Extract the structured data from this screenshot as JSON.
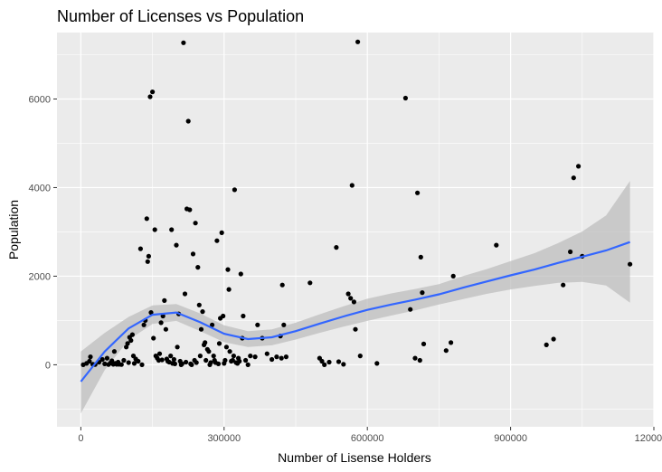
{
  "chart_data": {
    "type": "scatter",
    "title": "Number of Licenses vs Population",
    "xlabel": "Number of Lisense Holders",
    "ylabel": "Population",
    "xlim": [
      -50000,
      1200000
    ],
    "ylim": [
      -1400,
      7500
    ],
    "x_ticks": [
      0,
      300000,
      600000,
      900000,
      1200000
    ],
    "x_tick_labels": [
      "0",
      "300000",
      "600000",
      "900000",
      "1200000"
    ],
    "y_ticks": [
      0,
      2000,
      4000,
      6000
    ],
    "y_tick_labels": [
      "0",
      "2000",
      "4000",
      "6000"
    ],
    "grid": true,
    "legend": "none",
    "colors": {
      "panel": "#ebebeb",
      "grid": "#ffffff",
      "point": "#000000",
      "smooth_line": "#3366ff",
      "ribbon": "#bebebe"
    },
    "points": [
      [
        5000,
        0
      ],
      [
        12000,
        30
      ],
      [
        18000,
        80
      ],
      [
        20000,
        180
      ],
      [
        25000,
        10
      ],
      [
        30000,
        5
      ],
      [
        38000,
        60
      ],
      [
        45000,
        120
      ],
      [
        50000,
        20
      ],
      [
        55000,
        150
      ],
      [
        58000,
        5
      ],
      [
        62000,
        40
      ],
      [
        65000,
        90
      ],
      [
        68000,
        10
      ],
      [
        70000,
        300
      ],
      [
        72000,
        30
      ],
      [
        75000,
        10
      ],
      [
        78000,
        60
      ],
      [
        80000,
        10
      ],
      [
        85000,
        5
      ],
      [
        90000,
        100
      ],
      [
        95000,
        400
      ],
      [
        98000,
        480
      ],
      [
        100000,
        50
      ],
      [
        102000,
        620
      ],
      [
        105000,
        550
      ],
      [
        108000,
        680
      ],
      [
        110000,
        200
      ],
      [
        112000,
        30
      ],
      [
        115000,
        130
      ],
      [
        120000,
        80
      ],
      [
        125000,
        2620
      ],
      [
        128000,
        0
      ],
      [
        132000,
        900
      ],
      [
        135000,
        1000
      ],
      [
        138000,
        3300
      ],
      [
        140000,
        2330
      ],
      [
        142000,
        2450
      ],
      [
        145000,
        6050
      ],
      [
        147000,
        1180
      ],
      [
        150000,
        6160
      ],
      [
        152000,
        600
      ],
      [
        155000,
        3050
      ],
      [
        157000,
        200
      ],
      [
        160000,
        150
      ],
      [
        163000,
        100
      ],
      [
        165000,
        250
      ],
      [
        168000,
        950
      ],
      [
        170000,
        110
      ],
      [
        172000,
        1100
      ],
      [
        175000,
        1450
      ],
      [
        178000,
        800
      ],
      [
        180000,
        130
      ],
      [
        182000,
        80
      ],
      [
        185000,
        60
      ],
      [
        188000,
        200
      ],
      [
        190000,
        3050
      ],
      [
        192000,
        30
      ],
      [
        195000,
        120
      ],
      [
        197000,
        20
      ],
      [
        200000,
        2700
      ],
      [
        202000,
        400
      ],
      [
        205000,
        1150
      ],
      [
        208000,
        80
      ],
      [
        210000,
        0
      ],
      [
        212000,
        20
      ],
      [
        215000,
        7270
      ],
      [
        218000,
        1600
      ],
      [
        220000,
        60
      ],
      [
        222000,
        3520
      ],
      [
        225000,
        5500
      ],
      [
        228000,
        3500
      ],
      [
        230000,
        20
      ],
      [
        232000,
        0
      ],
      [
        235000,
        2500
      ],
      [
        238000,
        100
      ],
      [
        240000,
        3200
      ],
      [
        242000,
        50
      ],
      [
        245000,
        2200
      ],
      [
        248000,
        1350
      ],
      [
        250000,
        200
      ],
      [
        252000,
        800
      ],
      [
        255000,
        1200
      ],
      [
        258000,
        450
      ],
      [
        260000,
        500
      ],
      [
        262000,
        100
      ],
      [
        265000,
        350
      ],
      [
        268000,
        300
      ],
      [
        270000,
        0
      ],
      [
        272000,
        50
      ],
      [
        275000,
        900
      ],
      [
        278000,
        200
      ],
      [
        280000,
        100
      ],
      [
        282000,
        50
      ],
      [
        285000,
        2800
      ],
      [
        288000,
        20
      ],
      [
        290000,
        480
      ],
      [
        292000,
        1050
      ],
      [
        295000,
        2980
      ],
      [
        298000,
        1100
      ],
      [
        300000,
        30
      ],
      [
        302000,
        100
      ],
      [
        305000,
        400
      ],
      [
        308000,
        2150
      ],
      [
        310000,
        1700
      ],
      [
        312000,
        300
      ],
      [
        315000,
        80
      ],
      [
        318000,
        100
      ],
      [
        320000,
        200
      ],
      [
        322000,
        3950
      ],
      [
        325000,
        50
      ],
      [
        328000,
        30
      ],
      [
        330000,
        150
      ],
      [
        332000,
        80
      ],
      [
        335000,
        2050
      ],
      [
        338000,
        600
      ],
      [
        340000,
        1100
      ],
      [
        345000,
        100
      ],
      [
        350000,
        0
      ],
      [
        355000,
        200
      ],
      [
        365000,
        180
      ],
      [
        370000,
        900
      ],
      [
        380000,
        600
      ],
      [
        390000,
        250
      ],
      [
        400000,
        120
      ],
      [
        410000,
        180
      ],
      [
        418000,
        650
      ],
      [
        420000,
        150
      ],
      [
        422000,
        1800
      ],
      [
        425000,
        900
      ],
      [
        430000,
        180
      ],
      [
        480000,
        1850
      ],
      [
        500000,
        150
      ],
      [
        505000,
        80
      ],
      [
        510000,
        0
      ],
      [
        520000,
        60
      ],
      [
        535000,
        2650
      ],
      [
        540000,
        70
      ],
      [
        550000,
        10
      ],
      [
        560000,
        1600
      ],
      [
        565000,
        1500
      ],
      [
        568000,
        4050
      ],
      [
        572000,
        1420
      ],
      [
        575000,
        800
      ],
      [
        580000,
        7290
      ],
      [
        585000,
        200
      ],
      [
        620000,
        30
      ],
      [
        680000,
        6020
      ],
      [
        690000,
        1250
      ],
      [
        700000,
        150
      ],
      [
        705000,
        3880
      ],
      [
        710000,
        100
      ],
      [
        712000,
        2430
      ],
      [
        715000,
        1630
      ],
      [
        718000,
        470
      ],
      [
        765000,
        320
      ],
      [
        775000,
        500
      ],
      [
        780000,
        2000
      ],
      [
        870000,
        2700
      ],
      [
        975000,
        450
      ],
      [
        990000,
        580
      ],
      [
        1010000,
        1800
      ],
      [
        1025000,
        2550
      ],
      [
        1032000,
        4220
      ],
      [
        1042000,
        4480
      ],
      [
        1050000,
        2450
      ],
      [
        1150000,
        2270
      ]
    ],
    "smooth_fit": {
      "x": [
        0,
        50000,
        100000,
        150000,
        200000,
        250000,
        300000,
        350000,
        400000,
        450000,
        500000,
        550000,
        600000,
        650000,
        700000,
        750000,
        800000,
        850000,
        900000,
        950000,
        1000000,
        1050000,
        1100000,
        1150000
      ],
      "y": [
        -380,
        300,
        820,
        1130,
        1180,
        960,
        700,
        580,
        620,
        760,
        930,
        1090,
        1240,
        1360,
        1470,
        1590,
        1740,
        1880,
        2020,
        2150,
        2300,
        2440,
        2580,
        2770
      ],
      "lower": [
        -1100,
        -120,
        560,
        920,
        990,
        760,
        510,
        400,
        440,
        570,
        720,
        860,
        990,
        1110,
        1230,
        1360,
        1480,
        1600,
        1700,
        1780,
        1850,
        1870,
        1790,
        1400
      ],
      "upper": [
        300,
        720,
        1080,
        1340,
        1370,
        1160,
        890,
        760,
        800,
        950,
        1140,
        1320,
        1490,
        1610,
        1710,
        1820,
        2000,
        2160,
        2340,
        2520,
        2750,
        3010,
        3370,
        4150
      ]
    }
  }
}
